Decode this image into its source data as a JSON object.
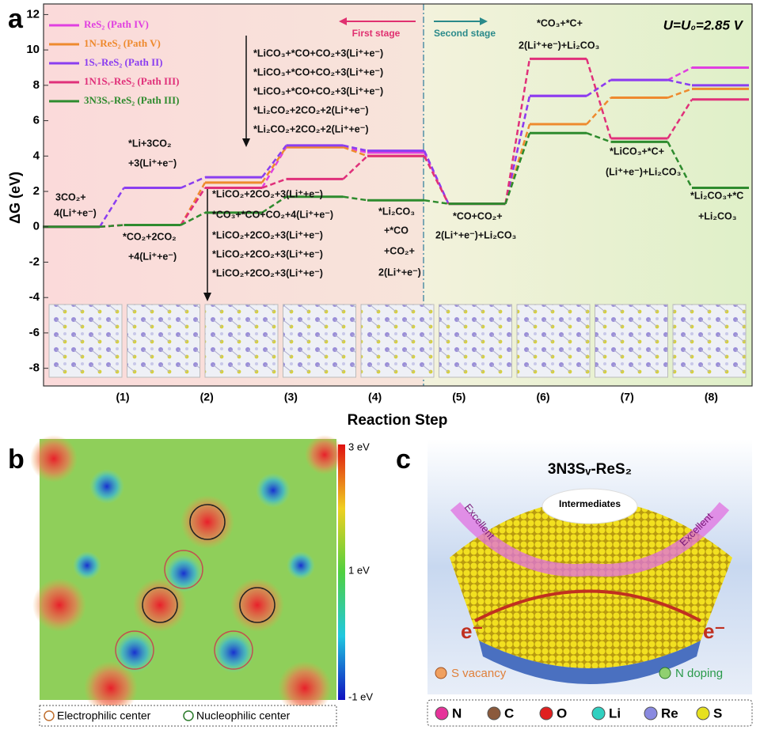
{
  "chart_data": {
    "type": "step-level",
    "panel_label": "a",
    "ylabel": "ΔG (eV)",
    "xlabel": "Reaction Step",
    "categories": [
      null,
      "(1)",
      "(2)",
      "(3)",
      "(4)",
      "(5)",
      "(6)",
      "(7)",
      "(8)"
    ],
    "ylim": [
      -9,
      12.6
    ],
    "yticks": [
      -8,
      -6,
      -4,
      -2,
      0,
      2,
      4,
      6,
      8,
      10,
      12
    ],
    "series": [
      {
        "name": "ReS₂ (Path IV)",
        "color": "#e040e0",
        "values": [
          0,
          0.1,
          2.2,
          4.5,
          4.2,
          1.3,
          7.4,
          8.3,
          9.0
        ]
      },
      {
        "name": "1N-ReS₂ (Path V)",
        "color": "#ee8a2e",
        "values": [
          0,
          0.1,
          2.5,
          4.5,
          4.0,
          1.3,
          5.8,
          7.3,
          7.8
        ]
      },
      {
        "name": "1Sᵥ-ReS₂ (Path II)",
        "color": "#8a3ef0",
        "values": [
          0,
          2.2,
          2.8,
          4.6,
          4.3,
          1.3,
          7.4,
          8.3,
          8.0
        ]
      },
      {
        "name": "1N1Sᵥ-ReS₂ (Path III)",
        "color": "#e0307a",
        "values": [
          0,
          0.1,
          2.2,
          2.7,
          4.0,
          1.3,
          9.5,
          5.0,
          7.2
        ]
      },
      {
        "name": "3N3Sᵥ-ReS₂ (Path III)",
        "color": "#2e8b2e",
        "values": [
          0,
          0.1,
          0.8,
          1.7,
          1.5,
          1.3,
          5.3,
          4.8,
          2.2
        ]
      }
    ],
    "condition": "U=U₀=2.85 V",
    "stages": [
      "First stage",
      "Second stage"
    ],
    "annotations": [
      "3CO₂+",
      "4(Li⁺+e⁻)",
      "*Li+3CO₂",
      "+3(Li⁺+e⁻)",
      "*CO₂+2CO₂",
      "+4(Li⁺+e⁻)",
      "*LiCO₃+*CO+CO₂+3(Li⁺+e⁻)",
      "*LiCO₃+*CO+CO₂+3(Li⁺+e⁻)",
      "*LiCO₃+*CO+CO₂+3(Li⁺+e⁻)",
      "*Li₂CO₂+2CO₂+2(Li⁺+e⁻)",
      "*Li₂CO₂+2CO₂+2(Li⁺+e⁻)",
      "*LiCO₂+2CO₂+3(Li⁺+e⁻)",
      "*CO₃+*CO+CO₂+4(Li⁺+e⁻)",
      "*LiCO₂+2CO₂+3(Li⁺+e⁻)",
      "*LiCO₂+2CO₂+3(Li⁺+e⁻)",
      "*LiCO₂+2CO₂+3(Li⁺+e⁻)",
      "*Li₂CO₃",
      "+*CO",
      "+CO₂+",
      "2(Li⁺+e⁻)",
      "*CO+CO₂+",
      "2(Li⁺+e⁻)+Li₂CO₃",
      "*CO₃+*C+",
      "2(Li⁺+e⁻)+Li₂CO₃",
      "*LiCO₃+*C+",
      "(Li⁺+e⁻)+Li₂CO₃",
      "*Li₂CO₃+*C",
      "+Li₂CO₃"
    ]
  },
  "panel_b": {
    "label": "b",
    "colorbar": [
      "3 eV",
      "1 eV",
      "-1 eV"
    ],
    "legend": [
      "Electrophilic center",
      "Nucleophilic center"
    ]
  },
  "panel_c": {
    "label": "c",
    "title": "3N3Sᵥ-ReS₂",
    "cloud": "Intermediates",
    "arrows": [
      "Excellent",
      "Excellent"
    ],
    "electrons": [
      "e⁻",
      "e⁻"
    ],
    "notes": [
      "S vacancy",
      "N doping"
    ],
    "legend": [
      {
        "name": "N",
        "color": "#e6339a"
      },
      {
        "name": "C",
        "color": "#8b5a3c"
      },
      {
        "name": "O",
        "color": "#e02020"
      },
      {
        "name": "Li",
        "color": "#30d0c0"
      },
      {
        "name": "Re",
        "color": "#8a8ae0"
      },
      {
        "name": "S",
        "color": "#e6e020"
      }
    ]
  }
}
